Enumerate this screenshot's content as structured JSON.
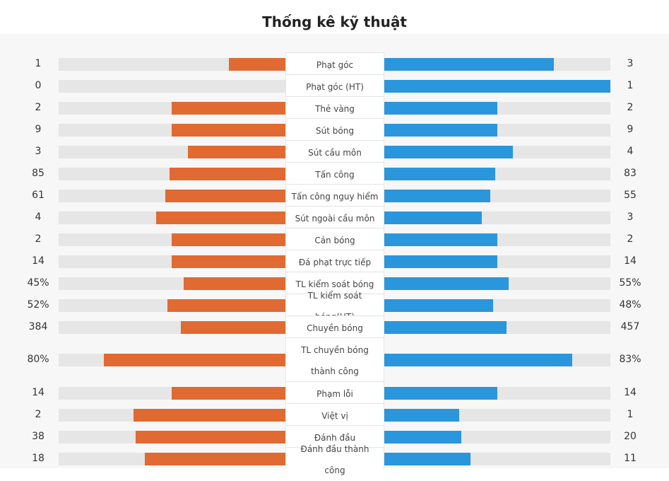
{
  "title": "Thống kê kỹ thuật",
  "colors": {
    "home": "#e06a32",
    "away": "#2a96dc",
    "track": "#e6e6e6"
  },
  "stats": [
    {
      "label": "Phạt góc",
      "home": "1",
      "away": "3",
      "home_fill": 0.25,
      "away_fill": 0.75
    },
    {
      "label": "Phạt góc (HT)",
      "home": "0",
      "away": "1",
      "home_fill": 0.0,
      "away_fill": 1.0
    },
    {
      "label": "Thẻ vàng",
      "home": "2",
      "away": "2",
      "home_fill": 0.5,
      "away_fill": 0.5
    },
    {
      "label": "Sút bóng",
      "home": "9",
      "away": "9",
      "home_fill": 0.5,
      "away_fill": 0.5
    },
    {
      "label": "Sút cầu môn",
      "home": "3",
      "away": "4",
      "home_fill": 0.43,
      "away_fill": 0.57
    },
    {
      "label": "Tấn công",
      "home": "85",
      "away": "83",
      "home_fill": 0.51,
      "away_fill": 0.49
    },
    {
      "label": "Tấn công nguy hiểm",
      "home": "61",
      "away": "55",
      "home_fill": 0.53,
      "away_fill": 0.47
    },
    {
      "label": "Sút ngoài cầu môn",
      "home": "4",
      "away": "3",
      "home_fill": 0.57,
      "away_fill": 0.43
    },
    {
      "label": "Cản bóng",
      "home": "2",
      "away": "2",
      "home_fill": 0.5,
      "away_fill": 0.5
    },
    {
      "label": "Đá phạt trực tiếp",
      "home": "14",
      "away": "14",
      "home_fill": 0.5,
      "away_fill": 0.5
    },
    {
      "label": "TL kiểm soát bóng",
      "home": "45%",
      "away": "55%",
      "home_fill": 0.45,
      "away_fill": 0.55
    },
    {
      "label": "TL kiểm soát bóng(HT)",
      "home": "52%",
      "away": "48%",
      "home_fill": 0.52,
      "away_fill": 0.48
    },
    {
      "label": "Chuyền bóng",
      "home": "384",
      "away": "457",
      "home_fill": 0.46,
      "away_fill": 0.54
    },
    {
      "label": "TL chuyền bóng thành công",
      "home": "80%",
      "away": "83%",
      "home_fill": 0.8,
      "away_fill": 0.83,
      "tall": true
    },
    {
      "label": "Phạm lỗi",
      "home": "14",
      "away": "14",
      "home_fill": 0.5,
      "away_fill": 0.5
    },
    {
      "label": "Việt vị",
      "home": "2",
      "away": "1",
      "home_fill": 0.67,
      "away_fill": 0.33
    },
    {
      "label": "Đánh đầu",
      "home": "38",
      "away": "20",
      "home_fill": 0.66,
      "away_fill": 0.34
    },
    {
      "label": "Đánh đầu thành công",
      "home": "18",
      "away": "11",
      "home_fill": 0.62,
      "away_fill": 0.38
    }
  ]
}
